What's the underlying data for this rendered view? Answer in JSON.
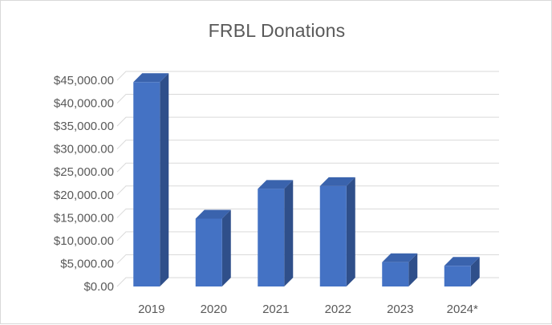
{
  "chart_data": {
    "type": "bar",
    "title": "FRBL Donations",
    "xlabel": "",
    "ylabel": "",
    "categories": [
      "2019",
      "2020",
      "2021",
      "2022",
      "2023",
      "2024*"
    ],
    "values": [
      44600,
      14800,
      21300,
      21900,
      5300,
      4500
    ],
    "ylim": [
      0,
      50000
    ],
    "y_ticks": [
      {
        "value": 0,
        "label": "$0.00"
      },
      {
        "value": 5000,
        "label": "$5,000.00"
      },
      {
        "value": 10000,
        "label": "$10,000.00"
      },
      {
        "value": 15000,
        "label": "$15,000.00"
      },
      {
        "value": 20000,
        "label": "$20,000.00"
      },
      {
        "value": 25000,
        "label": "$25,000.00"
      },
      {
        "value": 30000,
        "label": "$30,000.00"
      },
      {
        "value": 35000,
        "label": "$35,000.00"
      },
      {
        "value": 40000,
        "label": "$40,000.00"
      },
      {
        "value": 45000,
        "label": "$45,000.00"
      }
    ],
    "grid": true,
    "legend": "none",
    "colors": {
      "bar_front": "#4472c4",
      "bar_side": "#2f4f8a",
      "bar_top": "#3a63ad",
      "grid": "#d9d9d9",
      "text": "#595959"
    }
  }
}
